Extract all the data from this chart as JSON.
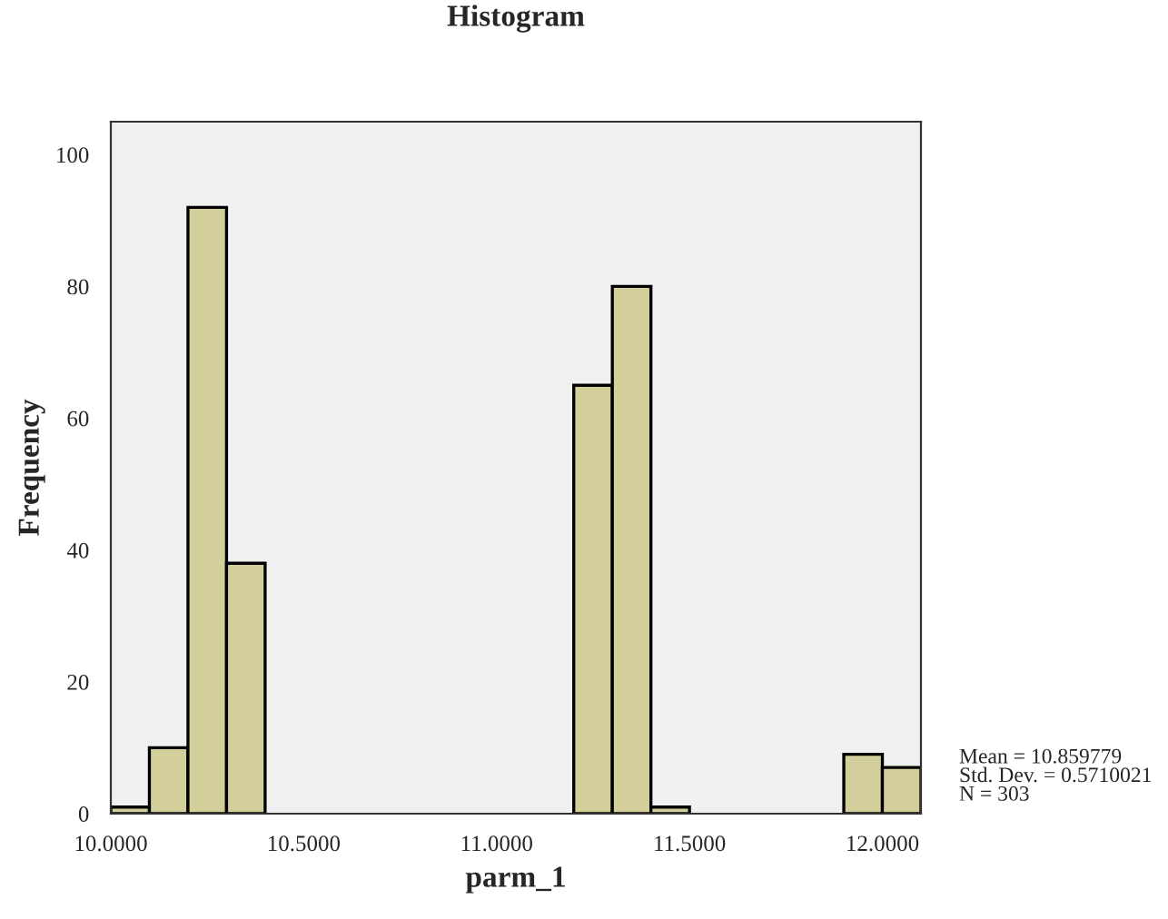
{
  "chart_data": {
    "type": "histogram",
    "title": "Histogram",
    "xlabel": "parm_1",
    "ylabel": "Frequency",
    "bins": [
      10.0,
      10.1,
      10.2,
      10.3,
      10.4,
      10.5,
      10.6,
      10.7,
      10.8,
      10.9,
      11.0,
      11.1,
      11.2,
      11.3,
      11.4,
      11.5,
      11.6,
      11.7,
      11.8,
      11.9,
      12.0,
      12.1
    ],
    "values": [
      1,
      10,
      92,
      38,
      0,
      0,
      0,
      0,
      0,
      0,
      0,
      0,
      65,
      80,
      1,
      0,
      0,
      0,
      0,
      9,
      7
    ],
    "color": "#d3cf9b",
    "xlim": [
      10.0,
      12.1
    ],
    "xticks": [
      {
        "value": 10.0,
        "label": "10.0000"
      },
      {
        "value": 10.5,
        "label": "10.5000"
      },
      {
        "value": 11.0,
        "label": "11.0000"
      },
      {
        "value": 11.5,
        "label": "11.5000"
      },
      {
        "value": 12.0,
        "label": "12.0000"
      }
    ],
    "ylim": [
      0,
      105
    ],
    "yticks": [
      0,
      20,
      40,
      60,
      80,
      100
    ],
    "grid": false,
    "legend": false,
    "annotations": [
      "Mean = 10.859779\nStd. Dev. = 0.5710021\nN = 303"
    ]
  }
}
